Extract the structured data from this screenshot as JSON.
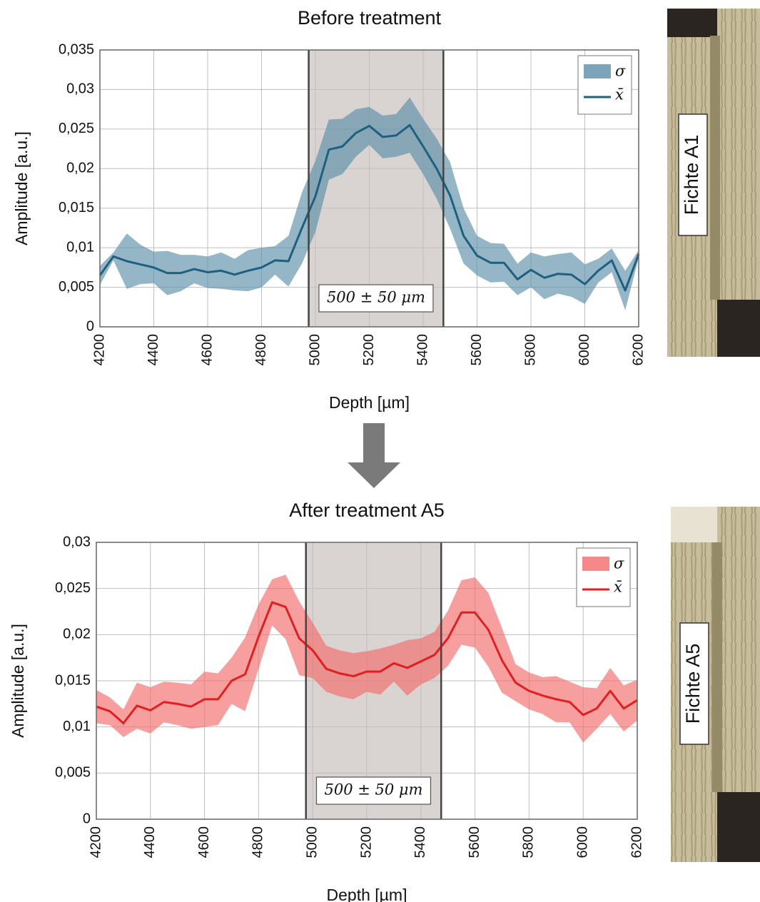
{
  "chart_data": [
    {
      "type": "band-line",
      "title": "Before treatment",
      "x_label": "Depth [µm]",
      "y_label": "Amplitude [a.u.]",
      "x": [
        4200,
        4250,
        4300,
        4350,
        4400,
        4450,
        4500,
        4550,
        4600,
        4650,
        4700,
        4750,
        4800,
        4850,
        4900,
        4950,
        5000,
        5050,
        5100,
        5150,
        5200,
        5250,
        5300,
        5350,
        5400,
        5450,
        5500,
        5550,
        5600,
        5650,
        5700,
        5750,
        5800,
        5850,
        5900,
        5950,
        6000,
        6050,
        6100,
        6150,
        6200
      ],
      "series": [
        {
          "name": "x̄",
          "color": "#1f5f80",
          "values": [
            0.0065,
            0.0089,
            0.0083,
            0.0079,
            0.0075,
            0.0068,
            0.0068,
            0.0073,
            0.0069,
            0.0071,
            0.0066,
            0.0071,
            0.0075,
            0.0084,
            0.0083,
            0.0125,
            0.0165,
            0.0224,
            0.0228,
            0.0245,
            0.0254,
            0.024,
            0.0242,
            0.0255,
            0.0228,
            0.02,
            0.0166,
            0.0115,
            0.009,
            0.0081,
            0.0081,
            0.006,
            0.0072,
            0.0062,
            0.0067,
            0.0066,
            0.0054,
            0.0071,
            0.0084,
            0.0046,
            0.0092
          ]
        },
        {
          "name": "σ",
          "color": "#5b8fa8",
          "values": [
            0.0012,
            0.0005,
            0.0035,
            0.0025,
            0.002,
            0.0028,
            0.0023,
            0.0018,
            0.002,
            0.0023,
            0.002,
            0.0026,
            0.0025,
            0.0018,
            0.0032,
            0.0045,
            0.0045,
            0.0038,
            0.0035,
            0.003,
            0.0024,
            0.0027,
            0.0027,
            0.0035,
            0.0035,
            0.0038,
            0.0042,
            0.0035,
            0.0025,
            0.0025,
            0.0024,
            0.002,
            0.0022,
            0.0027,
            0.0025,
            0.0028,
            0.0025,
            0.0015,
            0.0015,
            0.0025,
            0.0005
          ]
        }
      ],
      "region": [
        4975,
        5475
      ],
      "region_label": "500 ± 50 μm",
      "xlim": [
        4200,
        6200
      ],
      "xticks": [
        4200,
        4400,
        4600,
        4800,
        5000,
        5200,
        5400,
        5600,
        5800,
        6000,
        6200
      ],
      "ylim": [
        0,
        0.035
      ],
      "yticks": [
        0,
        {
          "value": 0.005,
          "label": "0,005"
        },
        {
          "value": 0.01,
          "label": "0,01"
        },
        {
          "value": 0.015,
          "label": "0,015"
        },
        {
          "value": 0.02,
          "label": "0,02"
        },
        {
          "value": 0.025,
          "label": "0,025"
        },
        {
          "value": 0.03,
          "label": "0,03"
        },
        {
          "value": 0.035,
          "label": "0,035"
        }
      ],
      "grid": true,
      "legend": "upper right",
      "photo_label": "Fichte A1"
    },
    {
      "type": "band-line",
      "title": "After treatment A5",
      "x_label": "Depth [µm]",
      "y_label": "Amplitude [a.u.]",
      "x": [
        4200,
        4250,
        4300,
        4350,
        4400,
        4450,
        4500,
        4550,
        4600,
        4650,
        4700,
        4750,
        4800,
        4850,
        4900,
        4950,
        5000,
        5050,
        5100,
        5150,
        5200,
        5250,
        5300,
        5350,
        5400,
        5450,
        5500,
        5550,
        5600,
        5650,
        5700,
        5750,
        5800,
        5850,
        5900,
        5950,
        6000,
        6050,
        6100,
        6150,
        6200
      ],
      "series": [
        {
          "name": "x̄",
          "color": "#e02020",
          "values": [
            0.0122,
            0.0117,
            0.0104,
            0.0123,
            0.0118,
            0.0127,
            0.0125,
            0.0122,
            0.013,
            0.013,
            0.015,
            0.0157,
            0.0198,
            0.0235,
            0.023,
            0.0196,
            0.0183,
            0.0163,
            0.0158,
            0.0155,
            0.016,
            0.016,
            0.0169,
            0.0164,
            0.0171,
            0.0178,
            0.0196,
            0.0224,
            0.0224,
            0.0205,
            0.0172,
            0.0148,
            0.0139,
            0.0134,
            0.013,
            0.0127,
            0.0113,
            0.012,
            0.0139,
            0.012,
            0.0129
          ]
        },
        {
          "name": "σ",
          "color": "#f26b6b",
          "values": [
            0.0018,
            0.0015,
            0.0015,
            0.0025,
            0.0025,
            0.0022,
            0.0023,
            0.0024,
            0.003,
            0.0028,
            0.0025,
            0.004,
            0.0035,
            0.0025,
            0.0035,
            0.004,
            0.003,
            0.0025,
            0.0025,
            0.0025,
            0.0022,
            0.0025,
            0.002,
            0.003,
            0.0025,
            0.0025,
            0.003,
            0.0035,
            0.0038,
            0.004,
            0.0035,
            0.002,
            0.002,
            0.002,
            0.0025,
            0.0022,
            0.003,
            0.0022,
            0.0025,
            0.0025,
            0.0022
          ]
        }
      ],
      "region": [
        4975,
        5475
      ],
      "region_label": "500 ± 50 μm",
      "xlim": [
        4200,
        6200
      ],
      "xticks": [
        4200,
        4400,
        4600,
        4800,
        5000,
        5200,
        5400,
        5600,
        5800,
        6000,
        6200
      ],
      "ylim": [
        0,
        0.03
      ],
      "yticks": [
        0,
        {
          "value": 0.005,
          "label": "0,005"
        },
        {
          "value": 0.01,
          "label": "0,01"
        },
        {
          "value": 0.015,
          "label": "0,015"
        },
        {
          "value": 0.02,
          "label": "0,02"
        },
        {
          "value": 0.025,
          "label": "0,025"
        },
        {
          "value": 0.03,
          "label": "0,03"
        }
      ],
      "grid": true,
      "legend": "upper right",
      "photo_label": "Fichte A5"
    }
  ]
}
